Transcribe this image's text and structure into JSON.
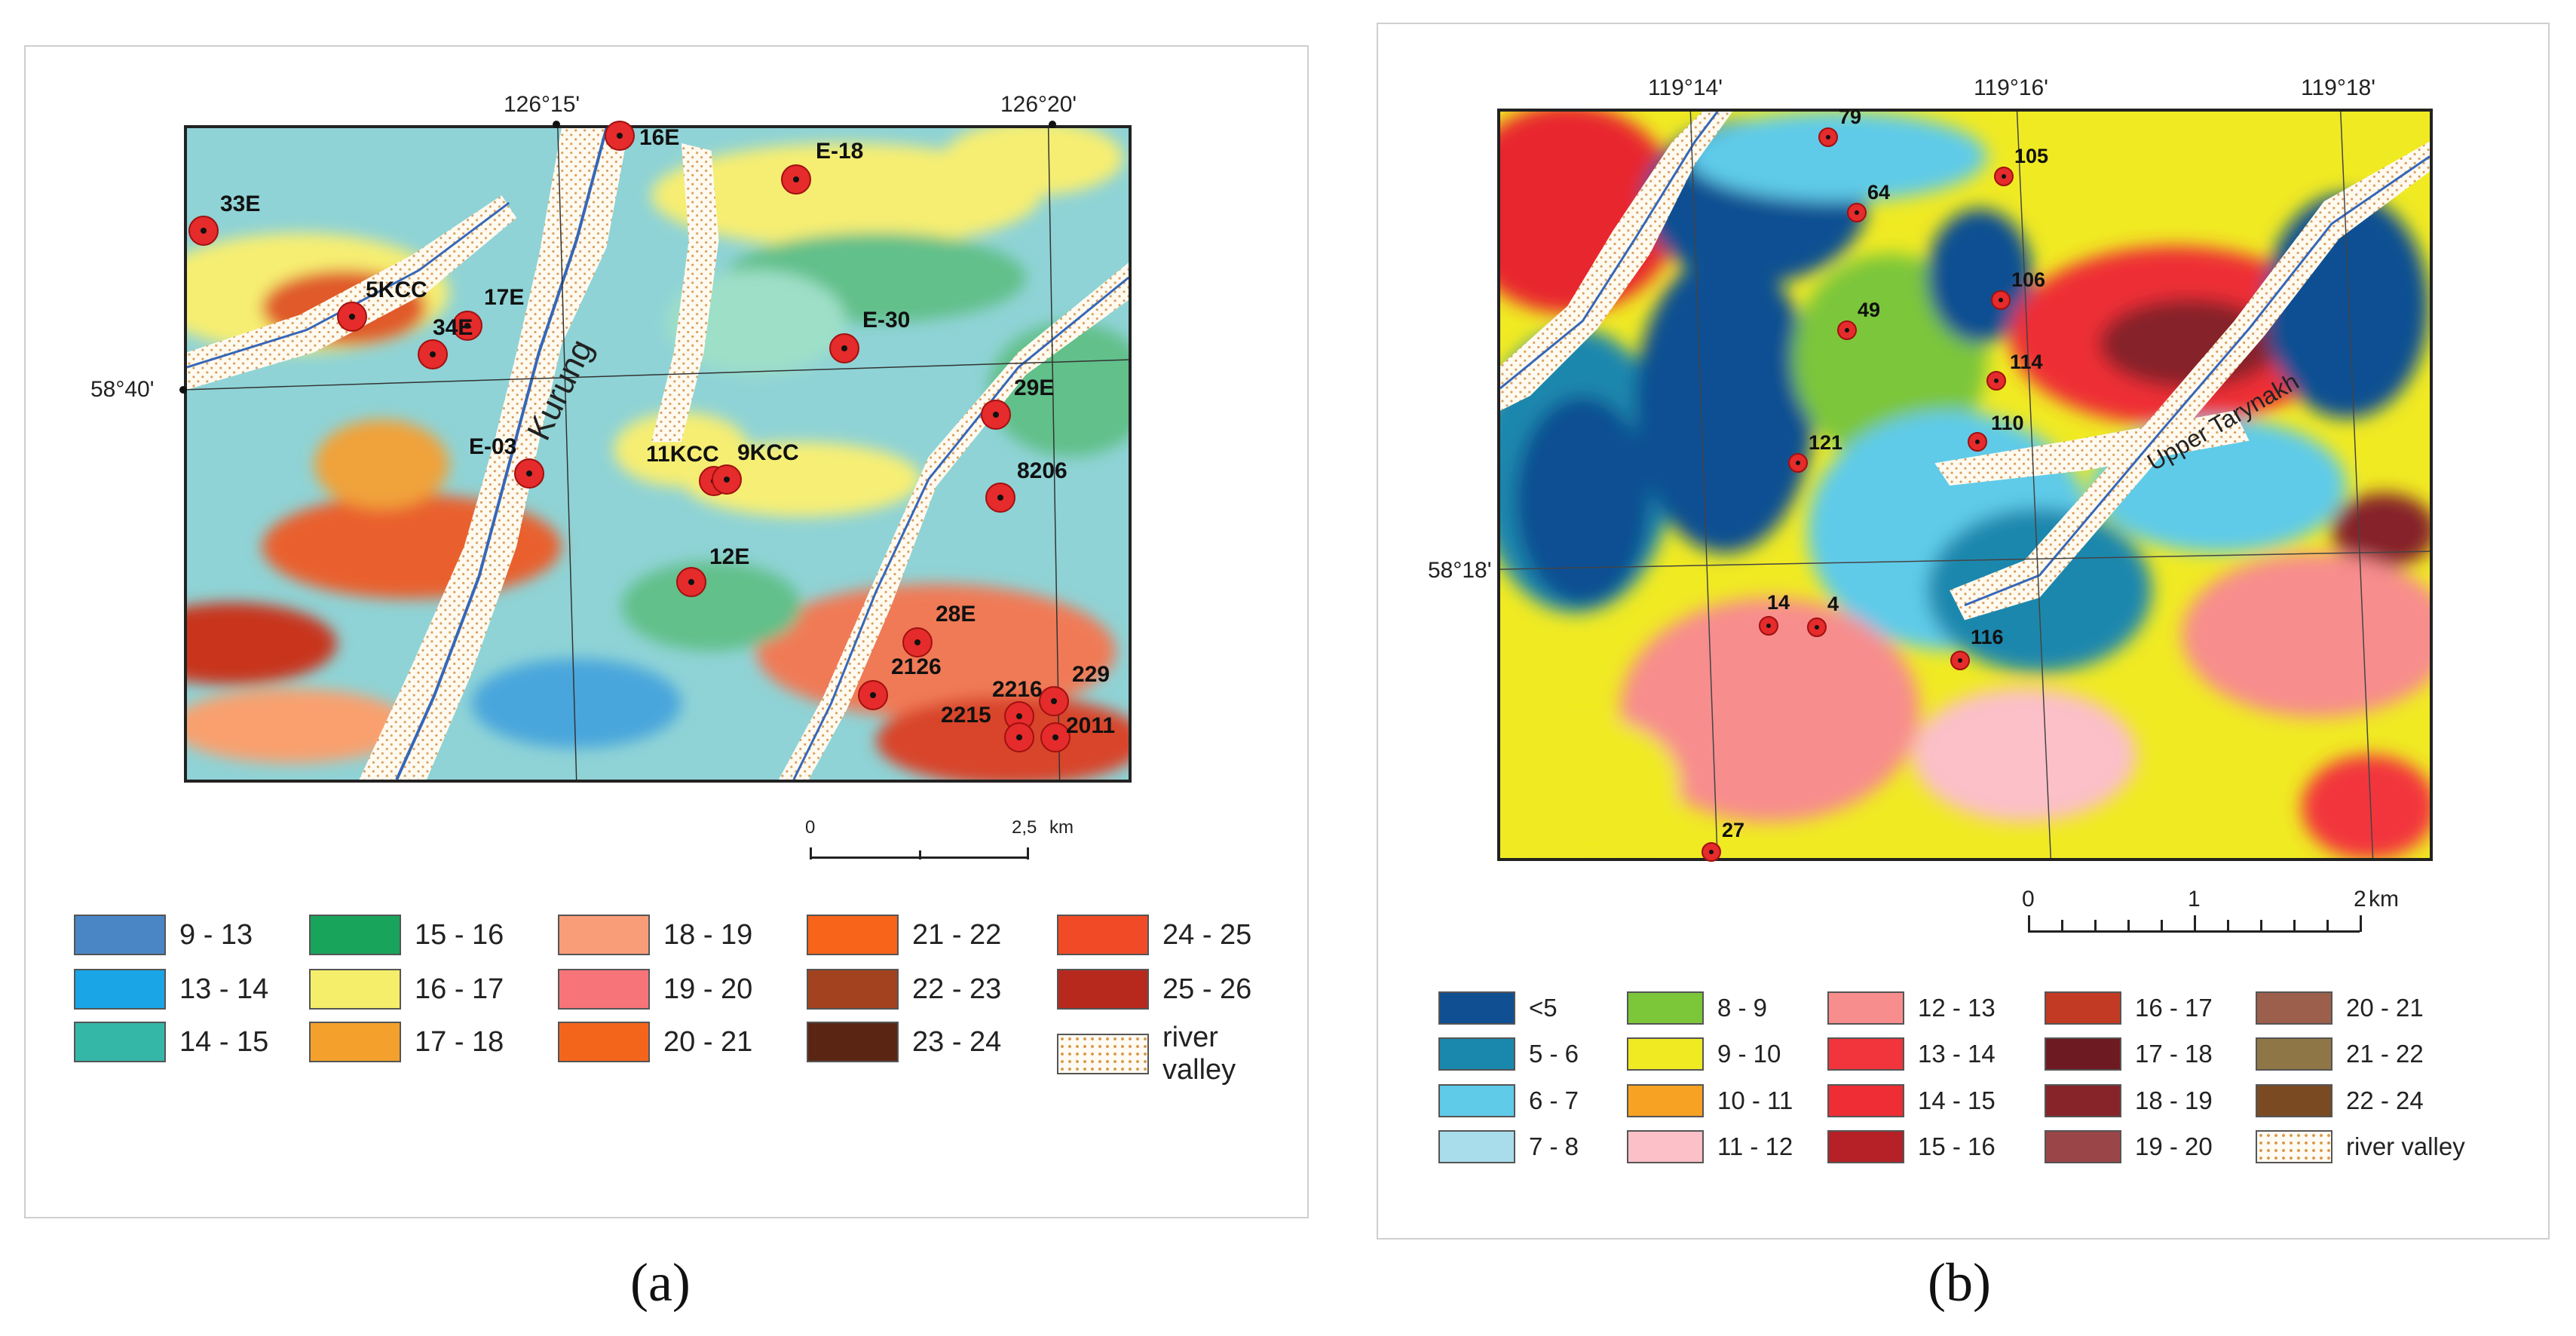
{
  "panel_a": {
    "caption": "(a)",
    "longitudes": [
      "126°15'",
      "126°20'"
    ],
    "latitude": "58°40'",
    "river_label": "Kurung",
    "points": [
      {
        "label": "33E"
      },
      {
        "label": "16E"
      },
      {
        "label": "E-18"
      },
      {
        "label": "5KCC"
      },
      {
        "label": "17E"
      },
      {
        "label": "34E"
      },
      {
        "label": "E-30"
      },
      {
        "label": "29E"
      },
      {
        "label": "E-03"
      },
      {
        "label": "11KCC"
      },
      {
        "label": "9KCC"
      },
      {
        "label": "8206"
      },
      {
        "label": "12E"
      },
      {
        "label": "28E"
      },
      {
        "label": "2126"
      },
      {
        "label": "2216"
      },
      {
        "label": "229"
      },
      {
        "label": "2215"
      },
      {
        "label": "2011"
      }
    ],
    "scale": {
      "start": "0",
      "end": "2,5",
      "unit": "km"
    },
    "legend": [
      {
        "label": "9 - 13",
        "color": "#4a86c5"
      },
      {
        "label": "13 - 14",
        "color": "#1aa5e6"
      },
      {
        "label": "14 - 15",
        "color": "#35b7a8"
      },
      {
        "label": "15 - 16",
        "color": "#18a45a"
      },
      {
        "label": "16 - 17",
        "color": "#f5ee6a"
      },
      {
        "label": "17 - 18",
        "color": "#f3a12c"
      },
      {
        "label": "18 - 19",
        "color": "#f99d78"
      },
      {
        "label": "19 - 20",
        "color": "#f77478"
      },
      {
        "label": "20 - 21",
        "color": "#f4651c"
      },
      {
        "label": "21 - 22",
        "color": "#f8641a"
      },
      {
        "label": "22 - 23",
        "color": "#a3421e"
      },
      {
        "label": "23 - 24",
        "color": "#5a2613"
      },
      {
        "label": "24 - 25",
        "color": "#f04b26"
      },
      {
        "label": "25 - 26",
        "color": "#b8291d"
      },
      {
        "label": "river\nvalley",
        "color": "#fff6e8"
      }
    ]
  },
  "panel_b": {
    "caption": "(b)",
    "longitudes": [
      "119°14'",
      "119°16'",
      "119°18'"
    ],
    "latitude": "58°18'",
    "river_label": "Upper Tarynakh",
    "points": [
      {
        "label": "79"
      },
      {
        "label": "105"
      },
      {
        "label": "64"
      },
      {
        "label": "106"
      },
      {
        "label": "49"
      },
      {
        "label": "114"
      },
      {
        "label": "110"
      },
      {
        "label": "121"
      },
      {
        "label": "14"
      },
      {
        "label": "4"
      },
      {
        "label": "116"
      },
      {
        "label": "27"
      }
    ],
    "scale": {
      "ticks": [
        "0",
        "1",
        "2"
      ],
      "unit": "km"
    },
    "legend": [
      {
        "label": "<5",
        "color": "#0f4f92"
      },
      {
        "label": "5 - 6",
        "color": "#1a87ad"
      },
      {
        "label": "6 - 7",
        "color": "#5fcbe9"
      },
      {
        "label": "7 - 8",
        "color": "#a9ddeb"
      },
      {
        "label": "8 - 9",
        "color": "#7cc63a"
      },
      {
        "label": "9 - 10",
        "color": "#f0ea23"
      },
      {
        "label": "10 - 11",
        "color": "#f7a223"
      },
      {
        "label": "11 - 12",
        "color": "#fbc0c8"
      },
      {
        "label": "12 - 13",
        "color": "#f78d8d"
      },
      {
        "label": "13 - 14",
        "color": "#f2343c"
      },
      {
        "label": "14 - 15",
        "color": "#ee2d35"
      },
      {
        "label": "15 - 16",
        "color": "#b52127"
      },
      {
        "label": "16 - 17",
        "color": "#c23a24"
      },
      {
        "label": "17 - 18",
        "color": "#6e1a22"
      },
      {
        "label": "18 - 19",
        "color": "#86242a"
      },
      {
        "label": "19 - 20",
        "color": "#9a4548"
      },
      {
        "label": "20 - 21",
        "color": "#9c5f4c"
      },
      {
        "label": "21 - 22",
        "color": "#8e7646"
      },
      {
        "label": "22 - 24",
        "color": "#7a4a22"
      },
      {
        "label": "river valley",
        "color": "#fff6e8"
      }
    ]
  }
}
